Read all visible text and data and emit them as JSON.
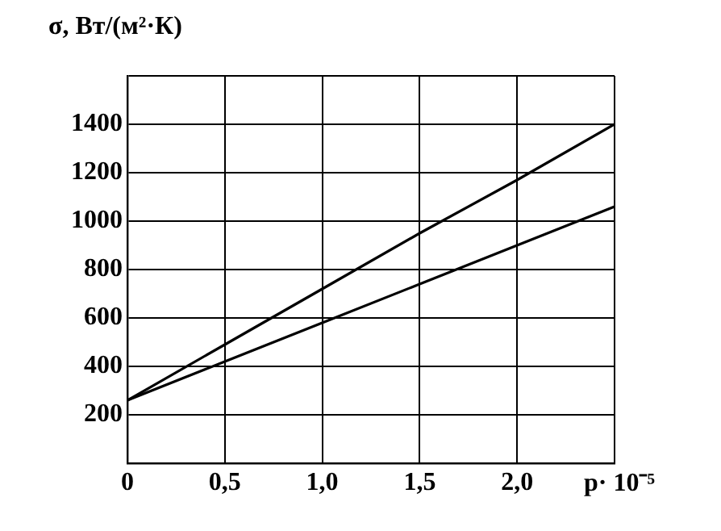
{
  "chart_data": {
    "type": "line",
    "ylabel": "σ, Вт/(м²·К)",
    "xlabel": "p· 10⁻⁵",
    "series": [
      {
        "color": "#000000",
        "x": [
          0,
          0.5,
          1,
          1.5,
          2,
          2.5
        ],
        "values": [
          260,
          490,
          720,
          950,
          1170,
          1400
        ]
      },
      {
        "color": "#000000",
        "x": [
          0,
          0.5,
          1,
          1.5,
          2,
          2.5
        ],
        "values": [
          260,
          420,
          580,
          740,
          900,
          1060
        ]
      }
    ],
    "xlim": [
      0,
      2.5
    ],
    "xticks": [
      0,
      {
        "value": 0.5,
        "label": "0,5"
      },
      {
        "value": 1,
        "label": "1,0"
      },
      {
        "value": 1.5,
        "label": "1,5"
      },
      {
        "value": 2,
        "label": "2,0"
      },
      {
        "value": 2.5,
        "label": null
      }
    ],
    "ylim": [
      0,
      1600
    ],
    "yticks": [
      {
        "value": 0,
        "label": null
      },
      200,
      400,
      600,
      800,
      1000,
      1200,
      1400,
      {
        "value": 1600,
        "label": null
      }
    ],
    "grid": true,
    "legend": false,
    "marker": "none",
    "line_style": "solid"
  }
}
